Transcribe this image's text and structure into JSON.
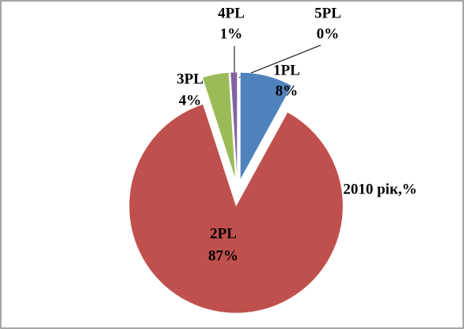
{
  "chart_data": {
    "type": "pie",
    "title": "2010 рік,%",
    "categories": [
      "1PL",
      "2PL",
      "3PL",
      "4PL",
      "5PL"
    ],
    "values": [
      8,
      87,
      4,
      1,
      0
    ],
    "value_labels": [
      "8%",
      "87%",
      "4%",
      "1%",
      "0%"
    ],
    "colors": [
      "#4f81bd",
      "#c0504d",
      "#9bbb59",
      "#8064a2",
      "#4bacc6"
    ]
  }
}
